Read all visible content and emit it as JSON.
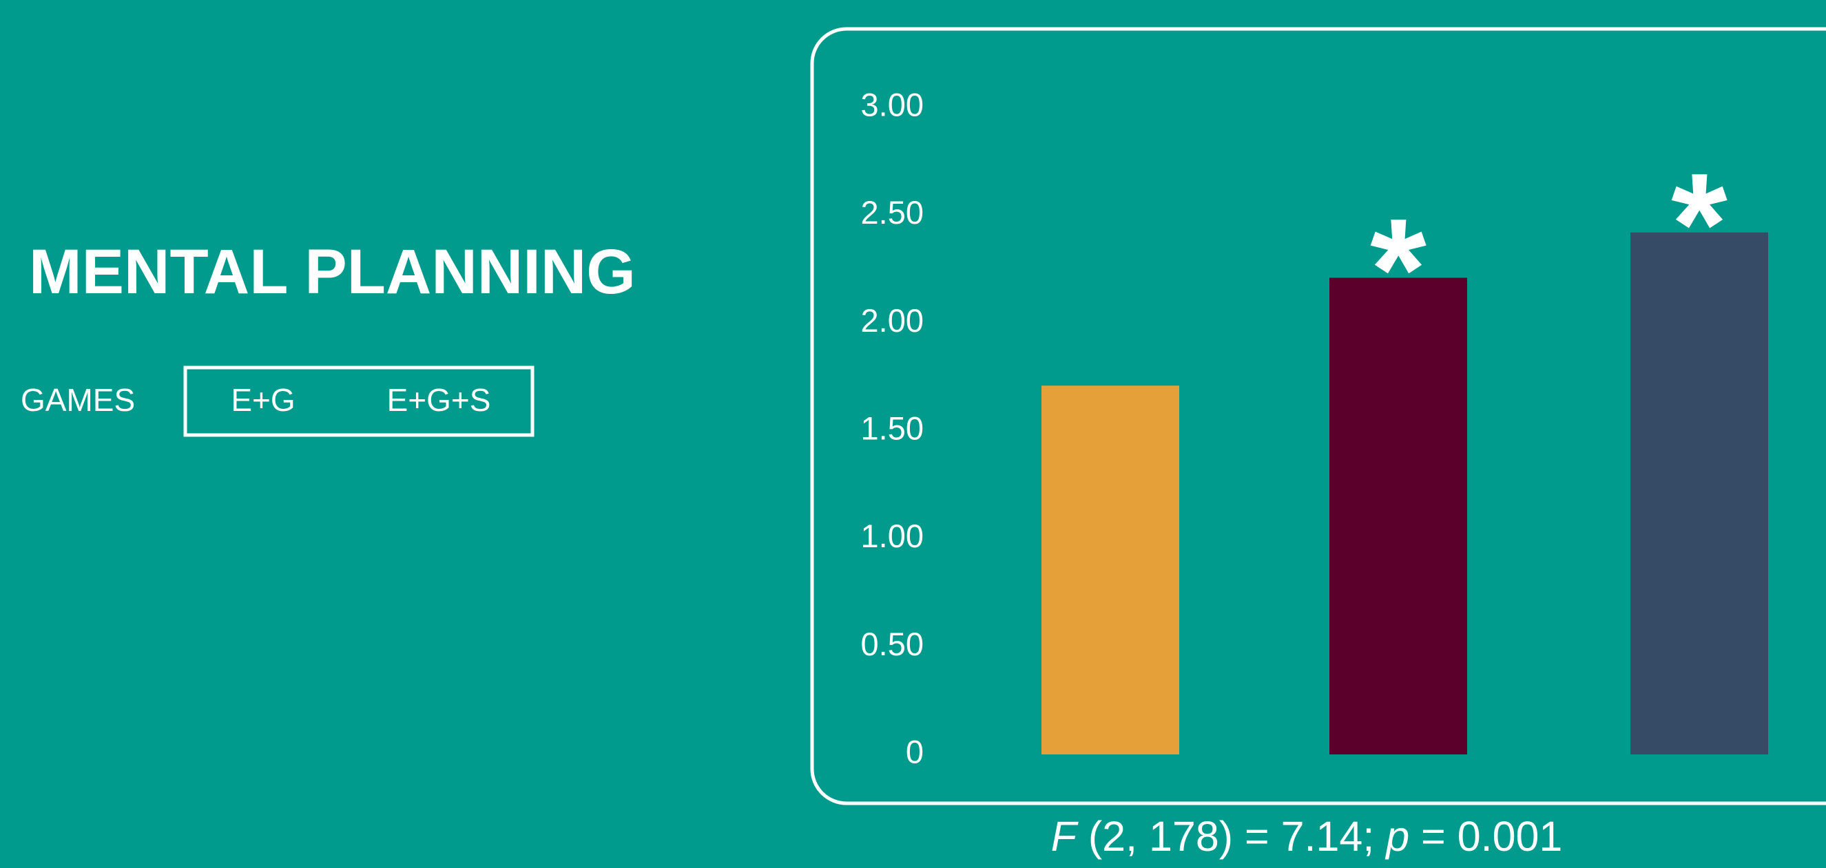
{
  "chart_data": {
    "type": "bar",
    "title": "MENTAL PLANNING",
    "categories": [
      "GAMES",
      "E+G",
      "E+G+S"
    ],
    "values": [
      1.71,
      2.21,
      2.42
    ],
    "colors": [
      "#e5a03a",
      "#5a002b",
      "#364c66"
    ],
    "annotations": [
      null,
      "*",
      "*"
    ],
    "ylim": [
      0,
      3
    ],
    "yticks": [
      0,
      {
        "value": 0.5,
        "label": "0.50"
      },
      {
        "value": 1,
        "label": "1.00"
      },
      {
        "value": 1.5,
        "label": "1.50"
      },
      {
        "value": 2,
        "label": "2.00"
      },
      {
        "value": 2.5,
        "label": "2.50"
      },
      {
        "value": 3,
        "label": "3.00"
      }
    ],
    "footnote": [
      "F",
      " (2, 178) = 7.14; ",
      "p",
      " = 0.001"
    ]
  }
}
